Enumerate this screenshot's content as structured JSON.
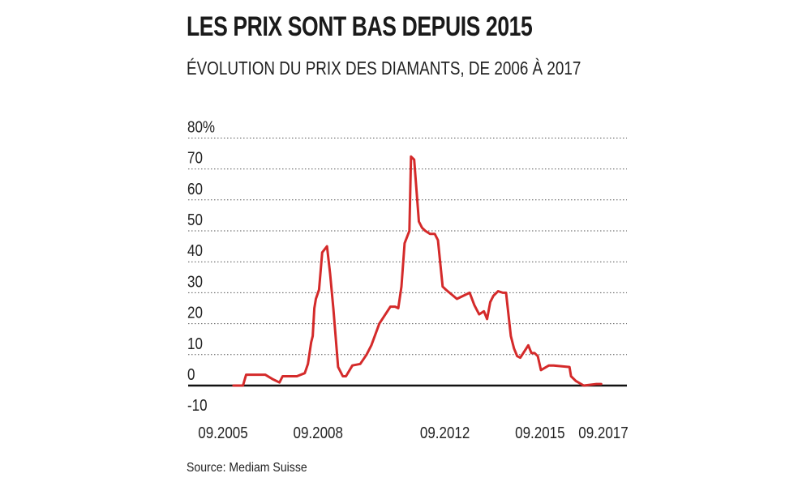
{
  "title": "LES PRIX SONT BAS DEPUIS 2015",
  "subtitle": "ÉVOLUTION DU PRIX DES DIAMANTS, DE 2006 À 2017",
  "source": "Source: Mediam Suisse",
  "colors": {
    "line": "#d42a2a",
    "grid": "#555555",
    "zero_line": "#111111"
  },
  "chart_data": {
    "type": "line",
    "title": "LES PRIX SONT BAS DEPUIS 2015",
    "subtitle": "ÉVOLUTION DU PRIX DES DIAMANTS, DE 2006 À 2017",
    "xlabel": "",
    "ylabel": "",
    "ylim": [
      -10,
      80
    ],
    "xlim": [
      2005.67,
      2017.67
    ],
    "y_ticks": [
      -10,
      0,
      10,
      20,
      30,
      40,
      50,
      60,
      70,
      80
    ],
    "y_tick_labels": [
      "-10",
      "0",
      "10",
      "20",
      "30",
      "40",
      "50",
      "60",
      "70",
      "80%"
    ],
    "x_ticks": [
      2005.67,
      2008.67,
      2012.67,
      2015.67,
      2017.67
    ],
    "x_tick_labels": [
      "09.2005",
      "09.2008",
      "09.2012",
      "09.2015",
      "09.2017"
    ],
    "grid": "horizontal dotted",
    "series": [
      {
        "x": [
          2006.0,
          2006.3,
          2006.4,
          2007.0,
          2007.25,
          2007.45,
          2007.55,
          2007.65,
          2008.0,
          2008.25,
          2008.35,
          2008.45,
          2008.5,
          2008.55,
          2008.6,
          2008.7,
          2008.8,
          2008.95,
          2009.05,
          2009.15,
          2009.3,
          2009.45,
          2009.55,
          2009.75,
          2010.0,
          2010.2,
          2010.35,
          2010.6,
          2010.95,
          2011.1,
          2011.2,
          2011.3,
          2011.4,
          2011.55,
          2011.6,
          2011.7,
          2011.85,
          2011.95,
          2012.05,
          2012.2,
          2012.35,
          2012.45,
          2012.6,
          2012.7,
          2013.05,
          2013.45,
          2013.6,
          2013.75,
          2013.9,
          2014.0,
          2014.1,
          2014.2,
          2014.35,
          2014.5,
          2014.6,
          2014.75,
          2014.85,
          2014.95,
          2015.05,
          2015.3,
          2015.4,
          2015.5,
          2015.6,
          2015.7,
          2015.95,
          2016.1,
          2016.6,
          2016.65,
          2016.8,
          2017.05,
          2017.45,
          2017.6
        ],
        "values": [
          0,
          0,
          3.5,
          3.5,
          2,
          1,
          3,
          3,
          3,
          4,
          7,
          14,
          16,
          25,
          28,
          31,
          43,
          45,
          36,
          25,
          6,
          3,
          3,
          6.5,
          7,
          10,
          13,
          20,
          25.5,
          25.5,
          25,
          32,
          46,
          50,
          74,
          73,
          53,
          51,
          50,
          49,
          49,
          47,
          32,
          31,
          28,
          30,
          26,
          23,
          24,
          21.5,
          27,
          29,
          30.5,
          30,
          30,
          16,
          12,
          9.5,
          9,
          13,
          10.5,
          10.5,
          9.5,
          5,
          6.5,
          6.5,
          6,
          3,
          1.5,
          0,
          0.5,
          0.5
        ]
      }
    ]
  }
}
